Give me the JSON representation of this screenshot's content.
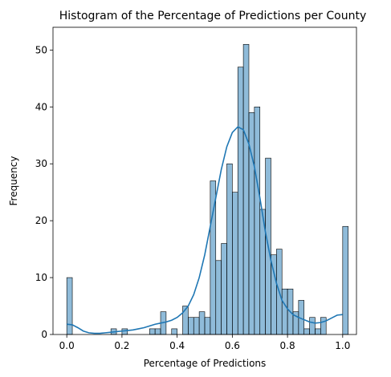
{
  "chart_data": {
    "type": "bar",
    "title": "Histogram of the Percentage of Predictions per County",
    "xlabel": "Percentage of Predictions",
    "ylabel": "Frequency",
    "xlim": [
      -0.05,
      1.05
    ],
    "ylim": [
      0,
      54
    ],
    "x_ticks": [
      0.0,
      0.2,
      0.4,
      0.6,
      0.8,
      1.0
    ],
    "x_tick_labels": [
      "0.0",
      "0.2",
      "0.4",
      "0.6",
      "0.8",
      "1.0"
    ],
    "y_ticks": [
      0,
      10,
      20,
      30,
      40,
      50
    ],
    "y_tick_labels": [
      "0",
      "10",
      "20",
      "30",
      "40",
      "50"
    ],
    "grid": false,
    "bin_width": 0.02,
    "bin_start": 0.0,
    "counts": [
      10,
      0,
      0,
      0,
      0,
      0,
      0,
      0,
      1,
      0,
      1,
      0,
      0,
      0,
      0,
      1,
      1,
      4,
      0,
      1,
      0,
      5,
      3,
      3,
      4,
      3,
      27,
      13,
      16,
      30,
      25,
      47,
      51,
      39,
      40,
      22,
      31,
      14,
      15,
      8,
      8,
      4,
      6,
      1,
      3,
      1,
      3,
      0,
      0,
      0,
      19
    ],
    "bar_color": "#1f77b4",
    "bar_alpha": 0.5,
    "kde_color": "#1f77b4",
    "kde": {
      "x": [
        0.0,
        0.02,
        0.04,
        0.06,
        0.08,
        0.1,
        0.12,
        0.14,
        0.16,
        0.18,
        0.2,
        0.22,
        0.24,
        0.26,
        0.28,
        0.3,
        0.32,
        0.34,
        0.36,
        0.38,
        0.4,
        0.42,
        0.44,
        0.46,
        0.48,
        0.5,
        0.52,
        0.54,
        0.56,
        0.58,
        0.6,
        0.62,
        0.64,
        0.66,
        0.68,
        0.7,
        0.72,
        0.74,
        0.76,
        0.78,
        0.8,
        0.82,
        0.84,
        0.86,
        0.88,
        0.9,
        0.92,
        0.94,
        0.96,
        0.98,
        1.0
      ],
      "y": [
        1.8,
        1.7,
        1.2,
        0.6,
        0.3,
        0.2,
        0.2,
        0.3,
        0.4,
        0.5,
        0.6,
        0.7,
        0.8,
        1.0,
        1.2,
        1.5,
        1.8,
        2.0,
        2.2,
        2.5,
        3.0,
        3.8,
        5.0,
        7.0,
        10.0,
        14.0,
        19.0,
        24.0,
        29.0,
        33.0,
        35.5,
        36.5,
        36.0,
        33.5,
        29.5,
        24.0,
        18.0,
        13.0,
        9.0,
        6.0,
        4.5,
        3.5,
        3.0,
        2.6,
        2.2,
        2.0,
        2.1,
        2.4,
        2.9,
        3.4,
        3.5
      ]
    }
  }
}
